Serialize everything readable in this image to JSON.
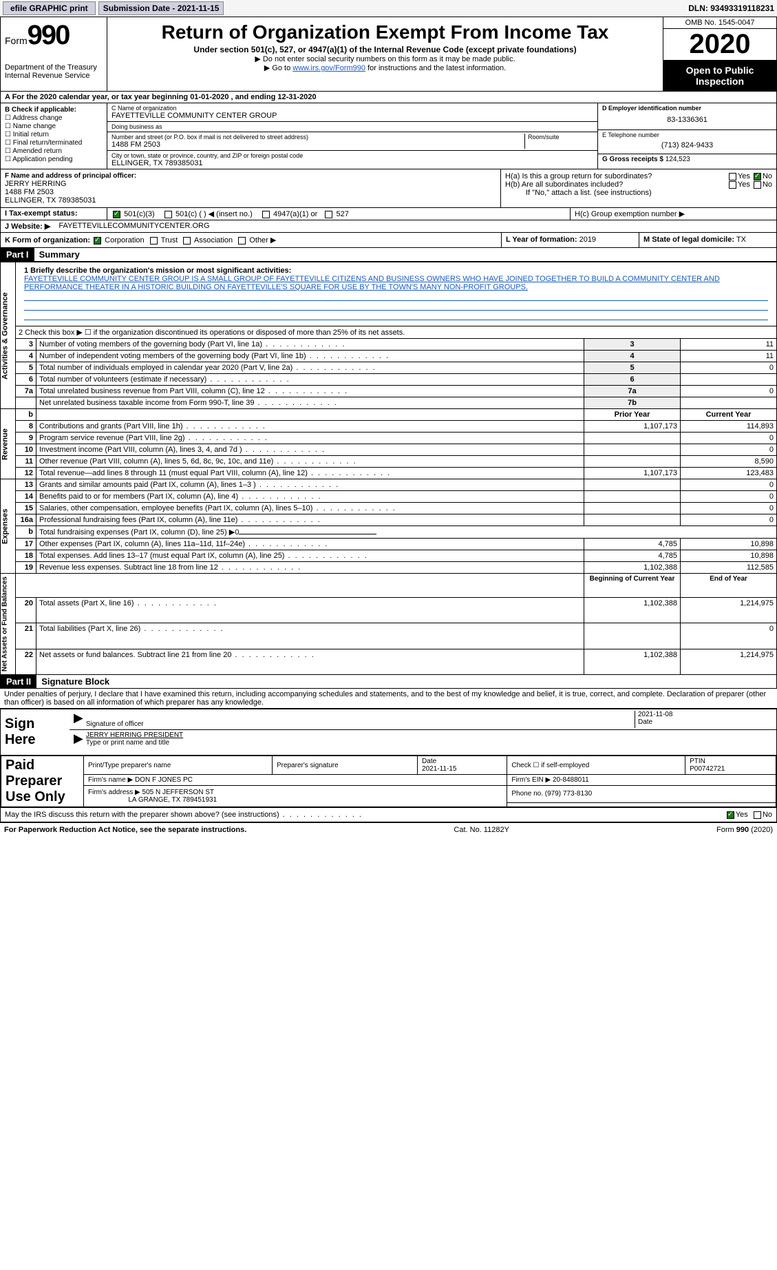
{
  "topbar": {
    "efile": "efile GRAPHIC print",
    "submission_label": "Submission Date - 2021-11-15",
    "dln": "DLN: 93493319118231"
  },
  "header": {
    "form_label": "Form",
    "form_num": "990",
    "dept": "Department of the Treasury Internal Revenue Service",
    "title": "Return of Organization Exempt From Income Tax",
    "subtitle": "Under section 501(c), 527, or 4947(a)(1) of the Internal Revenue Code (except private foundations)",
    "note1": "▶ Do not enter social security numbers on this form as it may be made public.",
    "note2_pre": "▶ Go to ",
    "note2_link": "www.irs.gov/Form990",
    "note2_post": " for instructions and the latest information.",
    "omb": "OMB No. 1545-0047",
    "year": "2020",
    "otp": "Open to Public Inspection"
  },
  "row_a": "A For the 2020 calendar year, or tax year beginning 01-01-2020    , and ending 12-31-2020",
  "col_b": {
    "title": "B Check if applicable:",
    "opts": [
      "Address change",
      "Name change",
      "Initial return",
      "Final return/terminated",
      "Amended return",
      "Application pending"
    ]
  },
  "col_c": {
    "name_lbl": "C Name of organization",
    "name": "FAYETTEVILLE COMMUNITY CENTER GROUP",
    "dba_lbl": "Doing business as",
    "dba": "",
    "addr_lbl": "Number and street (or P.O. box if mail is not delivered to street address)",
    "addr": "1488 FM 2503",
    "room_lbl": "Room/suite",
    "city_lbl": "City or town, state or province, country, and ZIP or foreign postal code",
    "city": "ELLINGER, TX  789385031"
  },
  "col_d": {
    "lbl": "D Employer identification number",
    "val": "83-1336361"
  },
  "col_e": {
    "lbl": "E Telephone number",
    "val": "(713) 824-9433"
  },
  "col_g": {
    "lbl": "G Gross receipts $",
    "val": "124,523"
  },
  "col_f": {
    "lbl": "F  Name and address of principal officer:",
    "name": "JERRY HERRING",
    "addr1": "1488 FM 2503",
    "addr2": "ELLINGER, TX  789385031"
  },
  "col_h": {
    "ha": "H(a)  Is this a group return for subordinates?",
    "hb": "H(b)  Are all subordinates included?",
    "hb_note": "If \"No,\" attach a list. (see instructions)",
    "hc": "H(c)  Group exemption number ▶",
    "yes": "Yes",
    "no": "No"
  },
  "row_i": {
    "lbl": "I   Tax-exempt status:",
    "opts": [
      "501(c)(3)",
      "501(c) (  ) ◀ (insert no.)",
      "4947(a)(1) or",
      "527"
    ]
  },
  "row_j": {
    "lbl": "J   Website: ▶",
    "val": "FAYETTEVILLECOMMUNITYCENTER.ORG"
  },
  "row_k": {
    "lbl": "K Form of organization:",
    "opts": [
      "Corporation",
      "Trust",
      "Association",
      "Other ▶"
    ]
  },
  "row_l": {
    "lbl": "L Year of formation:",
    "val": "2019"
  },
  "row_m": {
    "lbl": "M State of legal domicile:",
    "val": "TX"
  },
  "part1": {
    "hdr": "Part I",
    "title": "Summary"
  },
  "mission": {
    "lbl": "1  Briefly describe the organization's mission or most significant activities:",
    "txt": "FAYETTEVILLE COMMUNITY CENTER GROUP IS A SMALL GROUP OF FAYETTEVILLE CITIZENS AND BUSINESS OWNERS WHO HAVE JOINED TOGETHER TO BUILD A COMMUNITY CENTER AND PERFORMANCE THEATER IN A HISTORIC BUILDING ON FAYETTEVILLE'S SQUARE FOR USE BY THE TOWN'S MANY NON-PROFIT GROUPS."
  },
  "governance": {
    "vlabel": "Activities & Governance",
    "line2": "2   Check this box ▶ ☐  if the organization discontinued its operations or disposed of more than 25% of its net assets.",
    "rows": [
      {
        "n": "3",
        "t": "Number of voting members of the governing body (Part VI, line 1a)",
        "box": "3",
        "v": "11"
      },
      {
        "n": "4",
        "t": "Number of independent voting members of the governing body (Part VI, line 1b)",
        "box": "4",
        "v": "11"
      },
      {
        "n": "5",
        "t": "Total number of individuals employed in calendar year 2020 (Part V, line 2a)",
        "box": "5",
        "v": "0"
      },
      {
        "n": "6",
        "t": "Total number of volunteers (estimate if necessary)",
        "box": "6",
        "v": ""
      },
      {
        "n": "7a",
        "t": "Total unrelated business revenue from Part VIII, column (C), line 12",
        "box": "7a",
        "v": "0"
      },
      {
        "n": "",
        "t": "Net unrelated business taxable income from Form 990-T, line 39",
        "box": "7b",
        "v": ""
      }
    ]
  },
  "revenue": {
    "vlabel": "Revenue",
    "hdr_b": "b",
    "hdr_prior": "Prior Year",
    "hdr_curr": "Current Year",
    "rows": [
      {
        "n": "8",
        "t": "Contributions and grants (Part VIII, line 1h)",
        "p": "1,107,173",
        "c": "114,893"
      },
      {
        "n": "9",
        "t": "Program service revenue (Part VIII, line 2g)",
        "p": "",
        "c": "0"
      },
      {
        "n": "10",
        "t": "Investment income (Part VIII, column (A), lines 3, 4, and 7d )",
        "p": "",
        "c": "0"
      },
      {
        "n": "11",
        "t": "Other revenue (Part VIII, column (A), lines 5, 6d, 8c, 9c, 10c, and 11e)",
        "p": "",
        "c": "8,590"
      },
      {
        "n": "12",
        "t": "Total revenue—add lines 8 through 11 (must equal Part VIII, column (A), line 12)",
        "p": "1,107,173",
        "c": "123,483"
      }
    ]
  },
  "expenses": {
    "vlabel": "Expenses",
    "rows": [
      {
        "n": "13",
        "t": "Grants and similar amounts paid (Part IX, column (A), lines 1–3 )",
        "p": "",
        "c": "0"
      },
      {
        "n": "14",
        "t": "Benefits paid to or for members (Part IX, column (A), line 4)",
        "p": "",
        "c": "0"
      },
      {
        "n": "15",
        "t": "Salaries, other compensation, employee benefits (Part IX, column (A), lines 5–10)",
        "p": "",
        "c": "0"
      },
      {
        "n": "16a",
        "t": "Professional fundraising fees (Part IX, column (A), line 11e)",
        "p": "",
        "c": "0"
      },
      {
        "n": "b",
        "t": "Total fundraising expenses (Part IX, column (D), line 25) ▶0",
        "p": "-",
        "c": "-"
      },
      {
        "n": "17",
        "t": "Other expenses (Part IX, column (A), lines 11a–11d, 11f–24e)",
        "p": "4,785",
        "c": "10,898"
      },
      {
        "n": "18",
        "t": "Total expenses. Add lines 13–17 (must equal Part IX, column (A), line 25)",
        "p": "4,785",
        "c": "10,898"
      },
      {
        "n": "19",
        "t": "Revenue less expenses. Subtract line 18 from line 12",
        "p": "1,102,388",
        "c": "112,585"
      }
    ]
  },
  "netassets": {
    "vlabel": "Net Assets or Fund Balances",
    "hdr_begin": "Beginning of Current Year",
    "hdr_end": "End of Year",
    "rows": [
      {
        "n": "20",
        "t": "Total assets (Part X, line 16)",
        "p": "1,102,388",
        "c": "1,214,975"
      },
      {
        "n": "21",
        "t": "Total liabilities (Part X, line 26)",
        "p": "",
        "c": "0"
      },
      {
        "n": "22",
        "t": "Net assets or fund balances. Subtract line 21 from line 20",
        "p": "1,102,388",
        "c": "1,214,975"
      }
    ]
  },
  "part2": {
    "hdr": "Part II",
    "title": "Signature Block"
  },
  "declare": "Under penalties of perjury, I declare that I have examined this return, including accompanying schedules and statements, and to the best of my knowledge and belief, it is true, correct, and complete. Declaration of preparer (other than officer) is based on all information of which preparer has any knowledge.",
  "sign": {
    "label": "Sign Here",
    "sig_lbl": "Signature of officer",
    "date": "2021-11-08",
    "date_lbl": "Date",
    "name": "JERRY HERRING  PRESIDENT",
    "name_lbl": "Type or print name and title"
  },
  "prep": {
    "label": "Paid Preparer Use Only",
    "name_lbl": "Print/Type preparer's name",
    "sig_lbl": "Preparer's signature",
    "date_lbl": "Date",
    "date": "2021-11-15",
    "self_lbl": "Check ☐ if self-employed",
    "ptin_lbl": "PTIN",
    "ptin": "P00742721",
    "firm_name_lbl": "Firm's name    ▶",
    "firm_name": "DON F JONES PC",
    "firm_ein_lbl": "Firm's EIN ▶",
    "firm_ein": "20-8488011",
    "firm_addr_lbl": "Firm's address ▶",
    "firm_addr": "505 N JEFFERSON ST",
    "firm_city": "LA GRANGE, TX  789451931",
    "phone_lbl": "Phone no.",
    "phone": "(979) 773-8130"
  },
  "discuss": {
    "txt": "May the IRS discuss this return with the preparer shown above? (see instructions)",
    "yes": "Yes",
    "no": "No"
  },
  "footer": {
    "left": "For Paperwork Reduction Act Notice, see the separate instructions.",
    "mid": "Cat. No. 11282Y",
    "right": "Form 990 (2020)"
  }
}
